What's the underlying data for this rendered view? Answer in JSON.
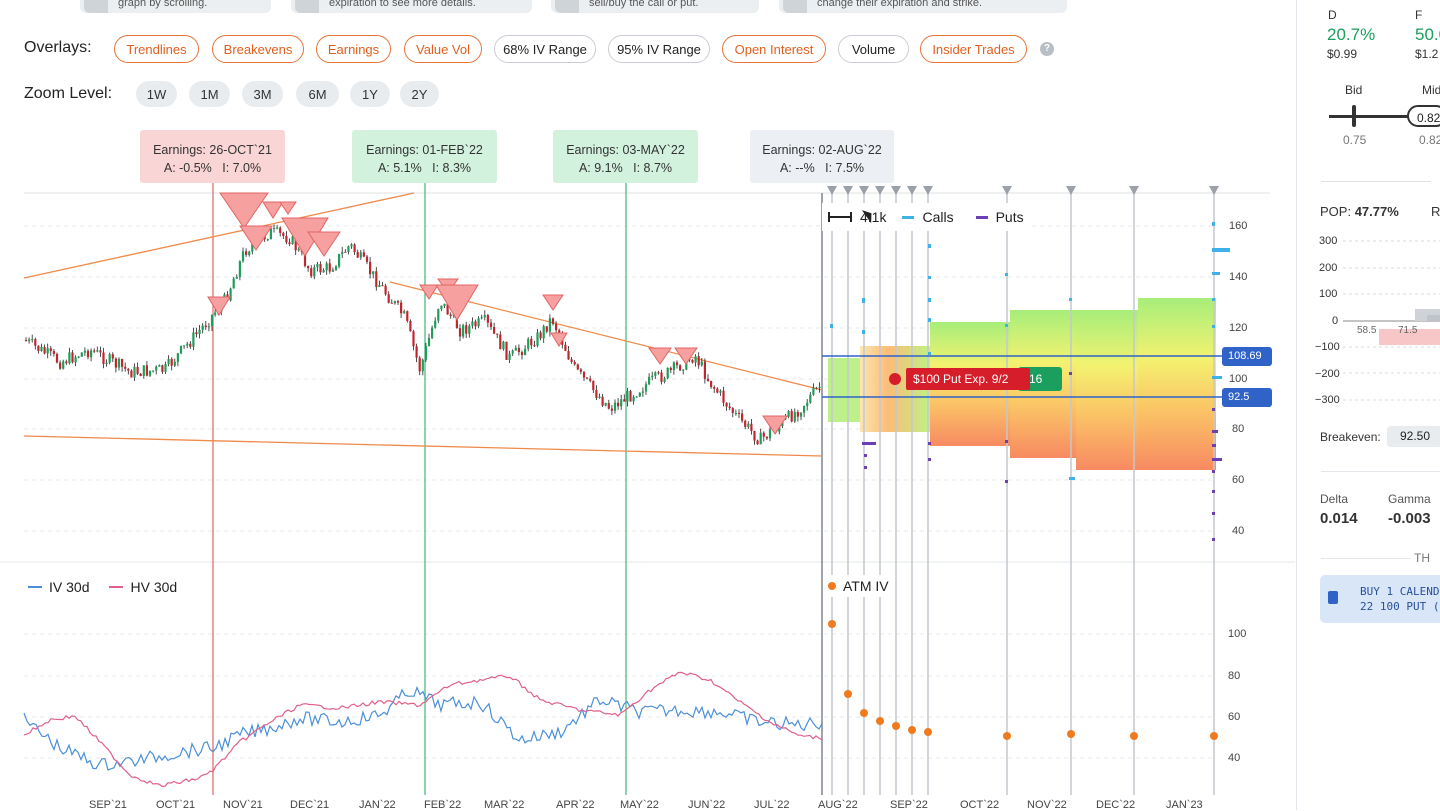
{
  "tooltips": [
    {
      "text": "graph by scrolling."
    },
    {
      "text": "expiration to see more details."
    },
    {
      "text": "sell/buy the call or put."
    },
    {
      "text": "change their expiration and strike."
    }
  ],
  "overlays": {
    "label": "Overlays:",
    "items": [
      {
        "label": "Trendlines",
        "style": "orange"
      },
      {
        "label": "Breakevens",
        "style": "orange"
      },
      {
        "label": "Earnings",
        "style": "orange"
      },
      {
        "label": "Value Vol",
        "style": "orange"
      },
      {
        "label": "68% IV Range",
        "style": "gray"
      },
      {
        "label": "95% IV Range",
        "style": "gray"
      },
      {
        "label": "Open Interest",
        "style": "orange"
      },
      {
        "label": "Volume",
        "style": "gray"
      },
      {
        "label": "Insider Trades",
        "style": "orange"
      }
    ],
    "help": "?"
  },
  "zoom": {
    "label": "Zoom Level:",
    "items": [
      "1W",
      "1M",
      "3M",
      "6M",
      "1Y",
      "2Y"
    ]
  },
  "earnings": [
    {
      "title": "Earnings: 26-OCT`21",
      "stats": "A: -0.5%   I: 7.0%",
      "color": "red"
    },
    {
      "title": "Earnings: 01-FEB`22",
      "stats": "A: 5.1%   I: 8.3%",
      "color": "green"
    },
    {
      "title": "Earnings: 03-MAY`22",
      "stats": "A: 9.1%   I: 8.7%",
      "color": "green"
    },
    {
      "title": "Earnings: 02-AUG`22",
      "stats": "A: --%   I: 7.5%",
      "color": "gray"
    }
  ],
  "chart": {
    "legend_oi": {
      "value": "4.1k",
      "calls": "Calls",
      "puts": "Puts"
    },
    "price_axis": [
      "160",
      "140",
      "120",
      "100",
      "80",
      "60",
      "40"
    ],
    "price_badges": {
      "upper": "108.69",
      "lower": "92.5"
    },
    "position_label": "$100 Put Exp. 9/2",
    "position_value": "16",
    "vol_legend": {
      "iv": "IV 30d",
      "hv": "HV 30d",
      "atm": "ATM IV"
    },
    "vol_axis": [
      "100",
      "80",
      "60",
      "40"
    ],
    "x_axis": [
      "SEP`21",
      "OCT`21",
      "NOV`21",
      "DEC`21",
      "JAN`22",
      "FEB`22",
      "MAR`22",
      "APR`22",
      "MAY`22",
      "JUN`22",
      "JUL`22",
      "AUG`22",
      "SEP`22",
      "OCT`22",
      "NOV`22",
      "DEC`22",
      "JAN`23"
    ],
    "colors": {
      "calls": "#3fb1e8",
      "puts": "#6b3fb3",
      "iv": "#4a8fd8",
      "hv": "#e0608a",
      "atm": "#f07a1e",
      "trend": "#f08a4b",
      "earn_red": "#e06565",
      "earn_green": "#3dba74"
    }
  },
  "right_panel": {
    "col_d": {
      "label": "D",
      "pct": "20.7%",
      "price": "$0.99"
    },
    "col_f": {
      "label": "F",
      "pct": "50.0",
      "price": "$1.2"
    },
    "bid": {
      "label": "Bid",
      "value": "0.75"
    },
    "mid": {
      "label": "Mid",
      "value": "0.82",
      "value2": "0.82"
    },
    "pop": {
      "label": "POP:",
      "value": "47.77%",
      "next": "R"
    },
    "pl_axis": [
      "300",
      "200",
      "100",
      "0",
      "−100",
      "−200",
      "−300"
    ],
    "pl_x": [
      "58.5",
      "71.5"
    ],
    "breakeven": {
      "label": "Breakeven:",
      "value": "92.50"
    },
    "greeks": [
      {
        "label": "Delta",
        "value": "0.014"
      },
      {
        "label": "Gamma",
        "value": "-0.003"
      }
    ],
    "section": "TH",
    "trade": {
      "line1": "BUY 1 CALEND",
      "line2": "22 100 PUT ("
    }
  }
}
